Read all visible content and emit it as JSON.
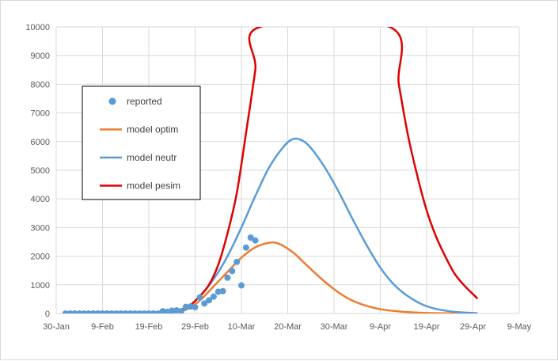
{
  "chart_data": {
    "type": "line",
    "title": "",
    "xlabel": "",
    "ylabel": "",
    "x_axis": {
      "type": "date",
      "min": "2020-01-30",
      "max": "2020-05-09",
      "tick_labels": [
        "30-Jan",
        "9-Feb",
        "19-Feb",
        "29-Feb",
        "10-Mar",
        "20-Mar",
        "30-Mar",
        "9-Apr",
        "19-Apr",
        "29-Apr",
        "9-May"
      ]
    },
    "y_axis": {
      "min": 0,
      "max": 10000,
      "step": 1000,
      "tick_labels": [
        "0",
        "1000",
        "2000",
        "3000",
        "4000",
        "5000",
        "6000",
        "7000",
        "8000",
        "9000",
        "10000"
      ]
    },
    "grid": "horizontal and vertical",
    "legend_position": "left, inside plot",
    "colors": {
      "reported": "#5b9bd5",
      "model_optim": "#ed7d31",
      "model_neutr": "#5b9bd5",
      "model_pesim": "#e00000"
    },
    "series": [
      {
        "name": "reported",
        "type": "scatter",
        "points": [
          [
            "2020-02-01",
            0
          ],
          [
            "2020-02-02",
            0
          ],
          [
            "2020-02-03",
            0
          ],
          [
            "2020-02-04",
            0
          ],
          [
            "2020-02-05",
            0
          ],
          [
            "2020-02-06",
            0
          ],
          [
            "2020-02-07",
            0
          ],
          [
            "2020-02-08",
            0
          ],
          [
            "2020-02-09",
            0
          ],
          [
            "2020-02-10",
            0
          ],
          [
            "2020-02-11",
            0
          ],
          [
            "2020-02-12",
            0
          ],
          [
            "2020-02-13",
            0
          ],
          [
            "2020-02-14",
            0
          ],
          [
            "2020-02-15",
            0
          ],
          [
            "2020-02-16",
            0
          ],
          [
            "2020-02-17",
            0
          ],
          [
            "2020-02-18",
            0
          ],
          [
            "2020-02-19",
            0
          ],
          [
            "2020-02-20",
            0
          ],
          [
            "2020-02-21",
            0
          ],
          [
            "2020-02-22",
            80
          ],
          [
            "2020-02-23",
            60
          ],
          [
            "2020-02-24",
            100
          ],
          [
            "2020-02-25",
            110
          ],
          [
            "2020-02-26",
            80
          ],
          [
            "2020-02-27",
            230
          ],
          [
            "2020-02-28",
            240
          ],
          [
            "2020-02-29",
            220
          ],
          [
            "2020-03-01",
            560
          ],
          [
            "2020-03-02",
            350
          ],
          [
            "2020-03-03",
            460
          ],
          [
            "2020-03-04",
            590
          ],
          [
            "2020-03-05",
            760
          ],
          [
            "2020-03-06",
            780
          ],
          [
            "2020-03-07",
            1250
          ],
          [
            "2020-03-08",
            1480
          ],
          [
            "2020-03-09",
            1800
          ],
          [
            "2020-03-10",
            980
          ],
          [
            "2020-03-11",
            2300
          ],
          [
            "2020-03-12",
            2650
          ],
          [
            "2020-03-13",
            2550
          ]
        ]
      },
      {
        "name": "model optim",
        "type": "line",
        "points": [
          [
            "2020-02-24",
            30
          ],
          [
            "2020-02-27",
            130
          ],
          [
            "2020-03-01",
            450
          ],
          [
            "2020-03-04",
            950
          ],
          [
            "2020-03-07",
            1450
          ],
          [
            "2020-03-10",
            1950
          ],
          [
            "2020-03-13",
            2310
          ],
          [
            "2020-03-16",
            2470
          ],
          [
            "2020-03-18",
            2440
          ],
          [
            "2020-03-21",
            2150
          ],
          [
            "2020-03-24",
            1700
          ],
          [
            "2020-03-27",
            1250
          ],
          [
            "2020-03-30",
            850
          ],
          [
            "2020-04-02",
            530
          ],
          [
            "2020-04-05",
            320
          ],
          [
            "2020-04-09",
            150
          ],
          [
            "2020-04-14",
            60
          ],
          [
            "2020-04-19",
            20
          ],
          [
            "2020-04-24",
            5
          ],
          [
            "2020-04-30",
            0
          ]
        ]
      },
      {
        "name": "model neutr",
        "type": "line",
        "points": [
          [
            "2020-02-24",
            40
          ],
          [
            "2020-02-27",
            170
          ],
          [
            "2020-03-01",
            600
          ],
          [
            "2020-03-04",
            1200
          ],
          [
            "2020-03-07",
            2000
          ],
          [
            "2020-03-10",
            3000
          ],
          [
            "2020-03-13",
            4100
          ],
          [
            "2020-03-16",
            5100
          ],
          [
            "2020-03-19",
            5800
          ],
          [
            "2020-03-21",
            6080
          ],
          [
            "2020-03-23",
            6050
          ],
          [
            "2020-03-25",
            5780
          ],
          [
            "2020-03-28",
            5100
          ],
          [
            "2020-03-31",
            4250
          ],
          [
            "2020-04-03",
            3300
          ],
          [
            "2020-04-06",
            2400
          ],
          [
            "2020-04-09",
            1600
          ],
          [
            "2020-04-12",
            1000
          ],
          [
            "2020-04-15",
            600
          ],
          [
            "2020-04-18",
            320
          ],
          [
            "2020-04-21",
            160
          ],
          [
            "2020-04-25",
            60
          ],
          [
            "2020-04-30",
            10
          ]
        ]
      },
      {
        "name": "model pesim",
        "type": "line",
        "points": [
          [
            "2020-02-24",
            50
          ],
          [
            "2020-02-26",
            140
          ],
          [
            "2020-02-28",
            300
          ],
          [
            "2020-03-01",
            600
          ],
          [
            "2020-03-03",
            1000
          ],
          [
            "2020-03-05",
            1700
          ],
          [
            "2020-03-07",
            2800
          ],
          [
            "2020-03-09",
            4200
          ],
          [
            "2020-03-11",
            6300
          ],
          [
            "2020-03-13",
            8500
          ],
          [
            "2020-03-14",
            10000
          ],
          [
            "2020-04-11",
            10000
          ],
          [
            "2020-04-13",
            8000
          ],
          [
            "2020-04-15",
            6200
          ],
          [
            "2020-04-17",
            4800
          ],
          [
            "2020-04-19",
            3600
          ],
          [
            "2020-04-21",
            2700
          ],
          [
            "2020-04-23",
            2000
          ],
          [
            "2020-04-25",
            1400
          ],
          [
            "2020-04-27",
            1000
          ],
          [
            "2020-04-30",
            520
          ]
        ]
      }
    ],
    "legend": [
      {
        "label": "reported",
        "marker": "dot"
      },
      {
        "label": "model optim",
        "marker": "line"
      },
      {
        "label": "model neutr",
        "marker": "line"
      },
      {
        "label": "model pesim",
        "marker": "line"
      }
    ]
  }
}
